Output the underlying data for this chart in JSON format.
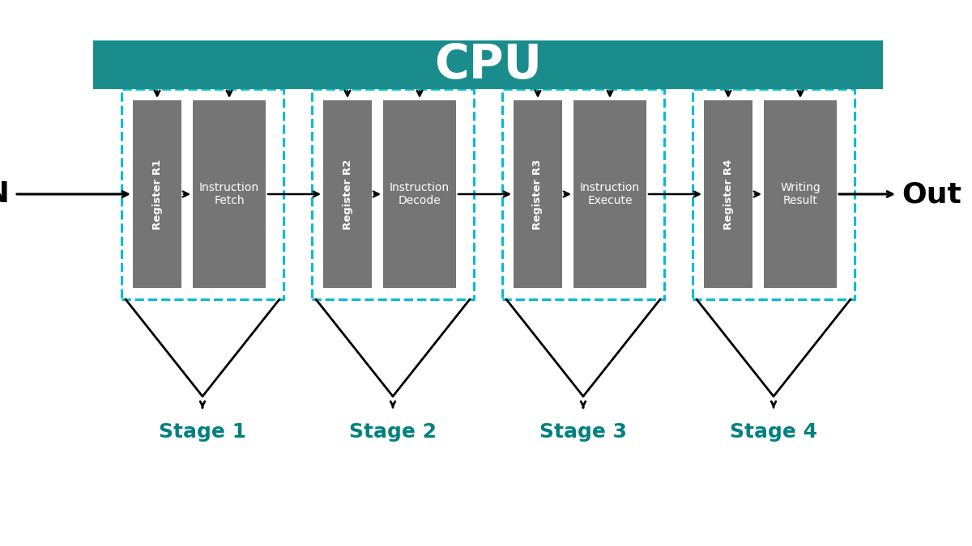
{
  "background_color": "#ffffff",
  "cpu_bar_color": "#1a8c8c",
  "cpu_text": "CPU",
  "cpu_text_color": "#ffffff",
  "cpu_text_fontsize": 42,
  "stage_box_border_color": "#00bcd4",
  "register_box_color": "#757575",
  "register_text_color": "#ffffff",
  "operation_box_color": "#757575",
  "operation_text_color": "#ffffff",
  "stage_label_color": "#008080",
  "stage_label_fontsize": 18,
  "in_out_fontsize": 26,
  "in_out_color": "#000000",
  "arrow_color": "#000000",
  "stages": [
    {
      "id": 1,
      "register": "Register R1",
      "operation": "Instruction\nFetch",
      "label": "Stage 1"
    },
    {
      "id": 2,
      "register": "Register R2",
      "operation": "Instruction\nDecode",
      "label": "Stage 2"
    },
    {
      "id": 3,
      "register": "Register R3",
      "operation": "Instruction\nExecute",
      "label": "Stage 3"
    },
    {
      "id": 4,
      "register": "Register R4",
      "operation": "Writing\nResult",
      "label": "Stage 4"
    }
  ],
  "figsize": [
    12,
    6.75
  ],
  "dpi": 100,
  "xlim": [
    0,
    12
  ],
  "ylim": [
    0,
    6.75
  ]
}
